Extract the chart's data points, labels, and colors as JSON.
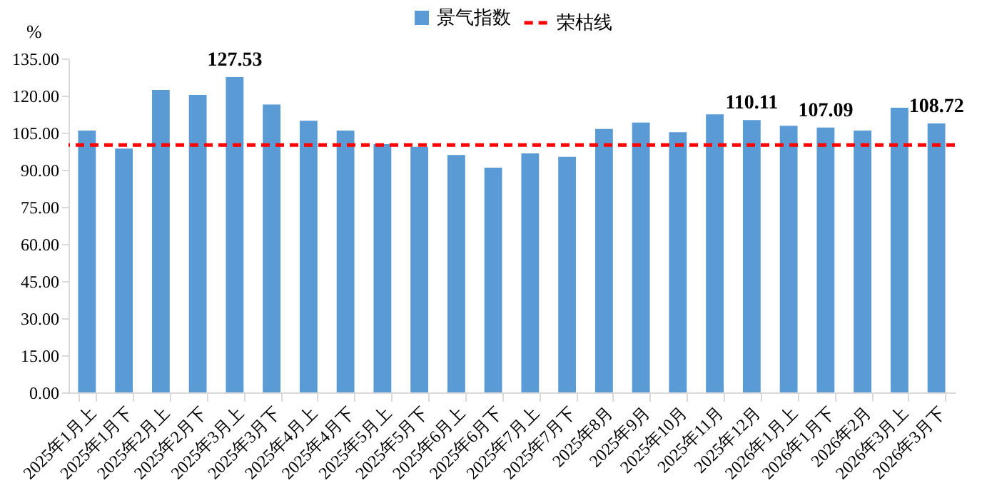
{
  "chart_data": {
    "type": "bar",
    "categories": [
      "2025年1月上",
      "2025年1月下",
      "2025年2月上",
      "2025年2月下",
      "2025年3月上",
      "2025年3月下",
      "2025年4月上",
      "2025年4月下",
      "2025年5月上",
      "2025年5月下",
      "2025年6月上",
      "2025年6月下",
      "2025年7月上",
      "2025年7月下",
      "2025年8月",
      "2025年9月",
      "2025年10月",
      "2025年11月",
      "2025年12月",
      "2026年1月上",
      "2026年1月下",
      "2026年2月",
      "2026年3月上",
      "2026年3月下"
    ],
    "series": [
      {
        "name": "景气指数",
        "color": "#5b9bd5",
        "values": [
          105.9,
          98.6,
          122.3,
          120.3,
          127.53,
          116.4,
          109.8,
          105.9,
          100.4,
          99.3,
          96.0,
          90.9,
          96.6,
          95.3,
          106.5,
          109.1,
          105.2,
          112.4,
          110.11,
          107.8,
          107.09,
          105.9,
          115.1,
          108.72
        ],
        "value_labels": [
          null,
          null,
          null,
          null,
          "127.53",
          null,
          null,
          null,
          null,
          null,
          null,
          null,
          null,
          null,
          null,
          null,
          null,
          null,
          "110.11",
          null,
          "107.09",
          null,
          null,
          "108.72"
        ]
      }
    ],
    "ylabel": "%",
    "ylim": [
      0,
      135
    ],
    "yticks": [
      {
        "value": 0,
        "label": "0.00"
      },
      {
        "value": 15,
        "label": "15.00"
      },
      {
        "value": 30,
        "label": "30.00"
      },
      {
        "value": 45,
        "label": "45.00"
      },
      {
        "value": 60,
        "label": "60.00"
      },
      {
        "value": 75,
        "label": "75.00"
      },
      {
        "value": 90,
        "label": "90.00"
      },
      {
        "value": 105,
        "label": "105.00"
      },
      {
        "value": 120,
        "label": "120.00"
      },
      {
        "value": 135,
        "label": "135.00"
      }
    ],
    "ref_lines": [
      {
        "axis": "y",
        "value": 100,
        "label": "荣枯线",
        "color": "#ff0000",
        "line_style": "dashed"
      }
    ],
    "legend": "top",
    "grid": false
  }
}
